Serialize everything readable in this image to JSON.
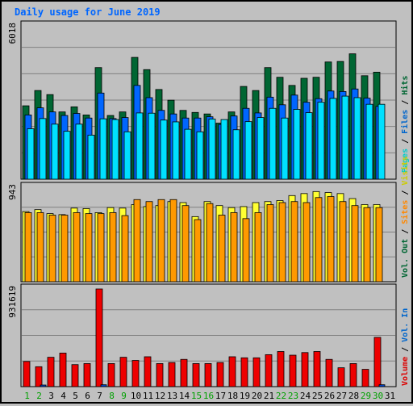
{
  "chart_data": [
    {
      "type": "bar",
      "title": "Daily usage for June 2019",
      "ymax_label": "6018",
      "right_legend": [
        {
          "name": "Hits",
          "color": "#006633"
        },
        {
          "name": "Files",
          "color": "#0066cc"
        },
        {
          "name": "Pages",
          "color": "#00cccc"
        }
      ],
      "categories": [
        "1",
        "2",
        "3",
        "4",
        "5",
        "6",
        "7",
        "8",
        "9",
        "10",
        "11",
        "12",
        "13",
        "14",
        "15",
        "16",
        "17",
        "18",
        "19",
        "20",
        "21",
        "22",
        "23",
        "24",
        "25",
        "26",
        "27",
        "28",
        "29",
        "30",
        "31"
      ],
      "weekend_days": [
        "1",
        "2",
        "8",
        "9",
        "15",
        "16",
        "22",
        "23",
        "29",
        "30"
      ],
      "series": [
        {
          "name": "Hits",
          "values": [
            2880,
            3480,
            3320,
            2640,
            2840,
            2520,
            4380,
            2500,
            2640,
            4780,
            4300,
            3520,
            3100,
            2700,
            2620,
            2560,
            2200,
            2640,
            3640,
            3480,
            4380,
            4000,
            3680,
            3960,
            4000,
            4600,
            4620,
            4920,
            4060,
            4200,
            0
          ]
        },
        {
          "name": "Files",
          "values": [
            2520,
            2800,
            2640,
            2500,
            2580,
            2400,
            3380,
            2380,
            2420,
            3680,
            3200,
            2700,
            2560,
            2400,
            2400,
            2450,
            2150,
            2480,
            2780,
            2600,
            3220,
            2920,
            3300,
            3020,
            3160,
            3460,
            3440,
            3540,
            3180,
            2860,
            0
          ]
        },
        {
          "name": "Pages",
          "values": [
            1980,
            2380,
            2160,
            1880,
            2160,
            1730,
            2370,
            2340,
            1860,
            2600,
            2590,
            2320,
            2250,
            1960,
            1860,
            2360,
            2340,
            1940,
            2260,
            2420,
            2780,
            2400,
            2740,
            2610,
            3020,
            3170,
            3260,
            3200,
            2940,
            2940,
            0
          ]
        }
      ]
    },
    {
      "type": "bar",
      "ymax_label": "943",
      "right_legend": [
        {
          "name": "Visits",
          "color": "#ffff00"
        },
        {
          "name": "Sites",
          "color": "#ff8800"
        },
        {
          "name": "Vol. Out",
          "color": "#006633"
        }
      ],
      "categories": [
        "1",
        "2",
        "3",
        "4",
        "5",
        "6",
        "7",
        "8",
        "9",
        "10",
        "11",
        "12",
        "13",
        "14",
        "15",
        "16",
        "17",
        "18",
        "19",
        "20",
        "21",
        "22",
        "23",
        "24",
        "25",
        "26",
        "27",
        "28",
        "29",
        "30",
        "31"
      ],
      "series": [
        {
          "name": "Visits",
          "values": [
            700,
            720,
            680,
            670,
            735,
            730,
            690,
            740,
            735,
            770,
            750,
            760,
            800,
            790,
            650,
            800,
            760,
            740,
            750,
            790,
            800,
            810,
            860,
            880,
            900,
            890,
            880,
            830,
            770,
            770,
            0
          ]
        },
        {
          "name": "Sites",
          "values": [
            690,
            690,
            665,
            665,
            690,
            680,
            680,
            690,
            660,
            820,
            800,
            820,
            820,
            760,
            620,
            780,
            665,
            690,
            630,
            690,
            770,
            790,
            800,
            790,
            840,
            850,
            800,
            760,
            740,
            740,
            0
          ]
        },
        {
          "name": "Vol. Out",
          "values": [
            0,
            0,
            0,
            0,
            0,
            0,
            0,
            0,
            0,
            0,
            0,
            0,
            0,
            0,
            0,
            0,
            0,
            0,
            0,
            0,
            0,
            0,
            0,
            0,
            0,
            0,
            0,
            0,
            0,
            0,
            0
          ]
        }
      ]
    },
    {
      "type": "bar",
      "ymax_label": "931619",
      "right_legend": [
        {
          "name": "Volume",
          "color": "#dd0000"
        },
        {
          "name": "Vol. In",
          "color": "#0066cc"
        }
      ],
      "categories": [
        "1",
        "2",
        "3",
        "4",
        "5",
        "6",
        "7",
        "8",
        "9",
        "10",
        "11",
        "12",
        "13",
        "14",
        "15",
        "16",
        "17",
        "18",
        "19",
        "20",
        "21",
        "22",
        "23",
        "24",
        "25",
        "26",
        "27",
        "28",
        "29",
        "30",
        "31"
      ],
      "series": [
        {
          "name": "Volume",
          "values": [
            240000,
            190000,
            280000,
            320000,
            210000,
            220000,
            931619,
            220000,
            280000,
            250000,
            285000,
            220000,
            230000,
            260000,
            220000,
            220000,
            230000,
            285000,
            275000,
            275000,
            305000,
            335000,
            300000,
            325000,
            335000,
            260000,
            180000,
            220000,
            165000,
            470000,
            0
          ]
        },
        {
          "name": "Vol. In",
          "values": [
            0,
            5000,
            0,
            0,
            0,
            0,
            18000,
            0,
            0,
            0,
            0,
            0,
            0,
            0,
            0,
            0,
            0,
            0,
            0,
            0,
            0,
            0,
            0,
            0,
            0,
            0,
            0,
            0,
            0,
            18000,
            0
          ]
        }
      ]
    }
  ],
  "colors": {
    "bg": "#c0c0c0",
    "grid": "#808080",
    "title": "#0000ff",
    "weekday_label": "#000000",
    "weekend_label": "#00a000",
    "hits_dark": "#006633",
    "files_blue": "#0066ff",
    "pages_cyan": "#00e0ff",
    "visits_yellow": "#ffff33",
    "sites_orange": "#ff9900",
    "volume_red": "#ee0000",
    "volin_blue": "#0044cc"
  }
}
